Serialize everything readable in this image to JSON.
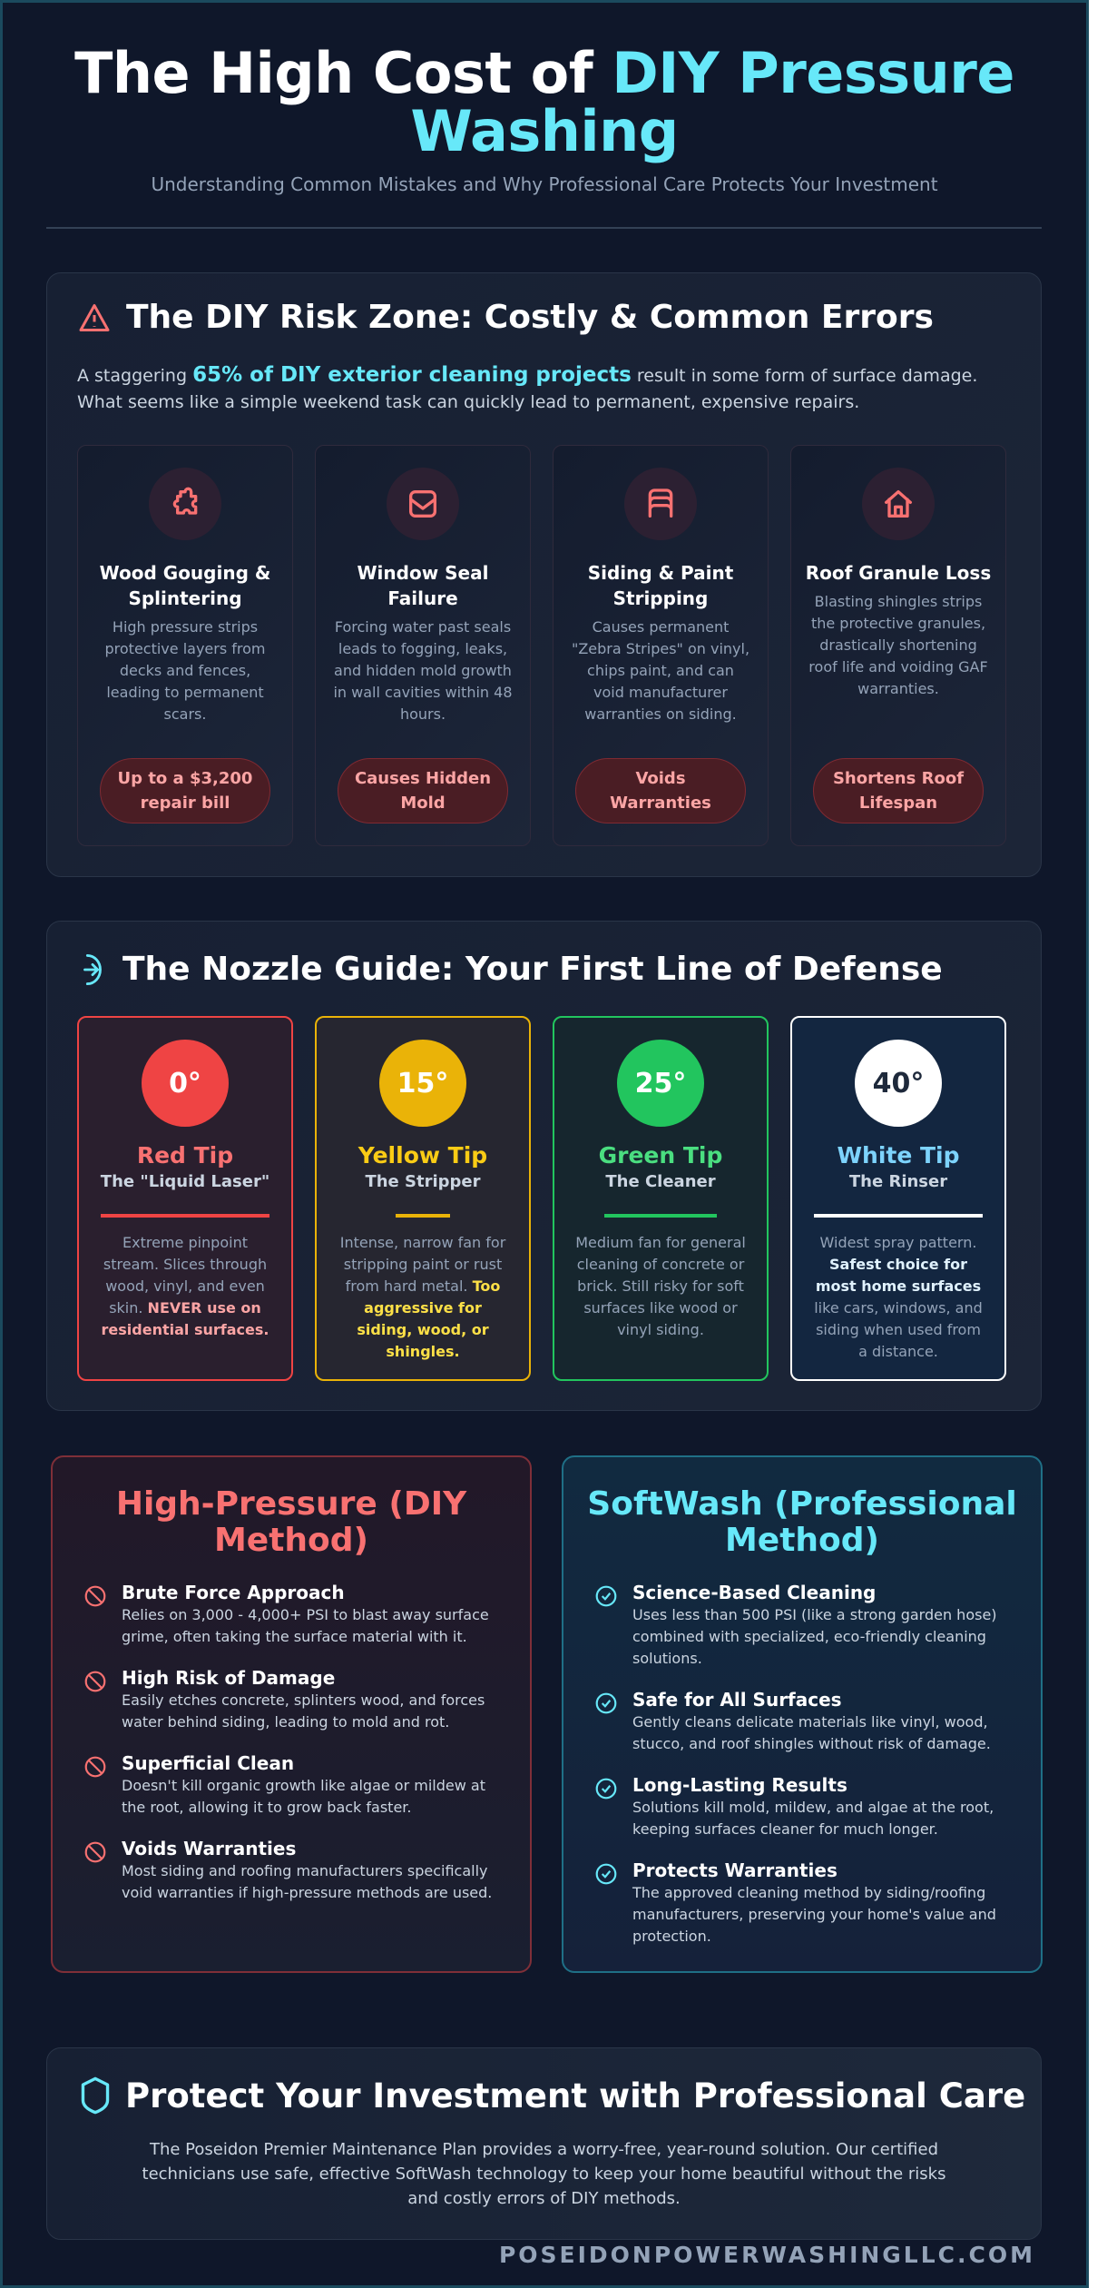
{
  "header": {
    "title_plain": "The High Cost of ",
    "title_accent": "DIY Pressure Washing",
    "subtitle": "Understanding Common Mistakes and Why Professional Care Protects Your Investment"
  },
  "risk": {
    "heading": "The DIY Risk Zone: Costly & Common Errors",
    "intro_pre": "A staggering ",
    "intro_highlight": "65% of DIY exterior cleaning projects",
    "intro_post": " result in some form of surface damage. What seems like a simple weekend task can quickly lead to permanent, expensive repairs.",
    "cards": [
      {
        "icon": "puzzle-icon",
        "title": "Wood Gouging & Splintering",
        "desc": "High pressure strips protective layers from decks and fences, leading to permanent scars.",
        "badge": "Up to a $3,200 repair bill"
      },
      {
        "icon": "window-seal-icon",
        "title": "Window Seal Failure",
        "desc": "Forcing water past seals leads to fogging, leaks, and hidden mold growth in wall cavities within 48 hours.",
        "badge": "Causes Hidden Mold"
      },
      {
        "icon": "siding-layers-icon",
        "title": "Siding & Paint Stripping",
        "desc": "Causes permanent \"Zebra Stripes\" on vinyl, chips paint, and can void manufacturer warranties on siding.",
        "badge": "Voids Warranties"
      },
      {
        "icon": "house-icon",
        "title": "Roof Granule Loss",
        "desc": "Blasting shingles strips the protective granules, drastically shortening roof life and voiding GAF warranties.",
        "badge": "Shortens Roof Lifespan"
      }
    ]
  },
  "nozzle": {
    "heading": "The Nozzle Guide: Your First Line of Defense",
    "tips": [
      {
        "degree": "0°",
        "name": "Red Tip",
        "nickname": "The \"Liquid Laser\"",
        "desc": "Extreme pinpoint stream. Slices through wood, vinyl, and even skin. ",
        "desc_bold": "NEVER use on residential surfaces.",
        "desc_after": "",
        "color": "#ef4444",
        "text": "#f87171",
        "bold": "#fca5a5",
        "bg": "#2a1f2e"
      },
      {
        "degree": "15°",
        "name": "Yellow Tip",
        "nickname": "The Stripper",
        "desc": "Intense, narrow fan for stripping paint or rust from hard metal. ",
        "desc_bold": "Too aggressive for siding, wood, or shingles.",
        "desc_after": "",
        "color": "#eab308",
        "text": "#facc15",
        "bold": "#fde047",
        "bg": "#262630"
      },
      {
        "degree": "25°",
        "name": "Green Tip",
        "nickname": "The Cleaner",
        "desc": "Medium fan for general cleaning of concrete or brick. Still risky for soft surfaces like wood or vinyl siding.",
        "desc_bold": "",
        "desc_after": "",
        "color": "#22c55e",
        "text": "#4ade80",
        "bold": "#86efac",
        "bg": "#16262e"
      },
      {
        "degree": "40°",
        "name": "White Tip",
        "nickname": "The Rinser",
        "desc": "Widest spray pattern. ",
        "desc_bold": "Safest choice for most home surfaces",
        "desc_after": " like cars, windows, and siding when used from a distance.",
        "color": "#ffffff",
        "text": "#7dd3fc",
        "bold": "#e0f2fe",
        "bg": "#132640"
      }
    ]
  },
  "compare": {
    "diy": {
      "title": "High-Pressure (DIY Method)",
      "items": [
        {
          "title": "Brute Force Approach",
          "desc": "Relies on 3,000 - 4,000+ PSI to blast away surface grime, often taking the surface material with it."
        },
        {
          "title": "High Risk of Damage",
          "desc": "Easily etches concrete, splinters wood, and forces water behind siding, leading to mold and rot."
        },
        {
          "title": "Superficial Clean",
          "desc": "Doesn't kill organic growth like algae or mildew at the root, allowing it to grow back faster."
        },
        {
          "title": "Voids Warranties",
          "desc": "Most siding and roofing manufacturers specifically void warranties if high-pressure methods are used."
        }
      ]
    },
    "pro": {
      "title": "SoftWash (Professional Method)",
      "items": [
        {
          "title": "Science-Based Cleaning",
          "desc": "Uses less than 500 PSI (like a strong garden hose) combined with specialized, eco-friendly cleaning solutions."
        },
        {
          "title": "Safe for All Surfaces",
          "desc": "Gently cleans delicate materials like vinyl, wood, stucco, and roof shingles without risk of damage."
        },
        {
          "title": "Long-Lasting Results",
          "desc": "Solutions kill mold, mildew, and algae at the root, keeping surfaces cleaner for much longer."
        },
        {
          "title": "Protects Warranties",
          "desc": "The approved cleaning method by siding/roofing manufacturers, preserving your home's value and protection."
        }
      ]
    }
  },
  "cta": {
    "heading": "Protect Your Investment with Professional Care",
    "body": "The Poseidon Premier Maintenance Plan provides a worry-free, year-round solution. Our certified technicians use safe, effective SoftWash technology to keep your home beautiful without the risks and costly errors of DIY methods."
  },
  "footer": {
    "website": "POSEIDONPOWERWASHINGLLC.COM"
  },
  "colors": {
    "accent": "#67e8f9",
    "danger": "#f87171",
    "background": "#0f172a"
  }
}
